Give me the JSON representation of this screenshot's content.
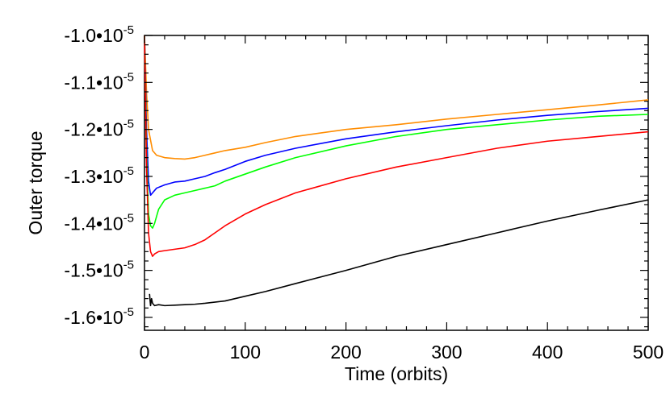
{
  "chart_data": {
    "type": "line",
    "xlabel": "Time (orbits)",
    "ylabel": "Outer torque",
    "xlim": [
      0,
      500
    ],
    "ylim": [
      -1.6275e-05,
      -1e-05
    ],
    "x_ticks": [
      {
        "value": 0,
        "label": "0"
      },
      {
        "value": 100,
        "label": "100"
      },
      {
        "value": 200,
        "label": "200"
      },
      {
        "value": 300,
        "label": "300"
      },
      {
        "value": 400,
        "label": "400"
      },
      {
        "value": 500,
        "label": "500"
      }
    ],
    "y_ticks": [
      {
        "value": -1e-05,
        "mantissa": "-1.0",
        "base": "•10",
        "exp": "-5"
      },
      {
        "value": -1.1e-05,
        "mantissa": "-1.1",
        "base": "•10",
        "exp": "-5"
      },
      {
        "value": -1.2e-05,
        "mantissa": "-1.2",
        "base": "•10",
        "exp": "-5"
      },
      {
        "value": -1.3e-05,
        "mantissa": "-1.3",
        "base": "•10",
        "exp": "-5"
      },
      {
        "value": -1.4e-05,
        "mantissa": "-1.4",
        "base": "•10",
        "exp": "-5"
      },
      {
        "value": -1.5e-05,
        "mantissa": "-1.5",
        "base": "•10",
        "exp": "-5"
      },
      {
        "value": -1.6e-05,
        "mantissa": "-1.6",
        "base": "•10",
        "exp": "-5"
      }
    ],
    "grid": false,
    "legend": "none",
    "series": [
      {
        "color": "#ff8c00",
        "x": [
          0,
          2,
          4,
          8,
          12,
          20,
          30,
          40,
          50,
          60,
          70,
          80,
          100,
          120,
          150,
          200,
          250,
          300,
          350,
          400,
          450,
          500
        ],
        "y": [
          -1e-05,
          -1.12e-05,
          -1.2e-05,
          -1.245e-05,
          -1.255e-05,
          -1.26e-05,
          -1.262e-05,
          -1.263e-05,
          -1.26e-05,
          -1.255e-05,
          -1.25e-05,
          -1.245e-05,
          -1.238e-05,
          -1.228e-05,
          -1.215e-05,
          -1.2e-05,
          -1.19e-05,
          -1.178e-05,
          -1.168e-05,
          -1.158e-05,
          -1.148e-05,
          -1.137e-05
        ]
      },
      {
        "color": "#0000ff",
        "x": [
          0,
          2,
          4,
          6,
          8,
          12,
          20,
          30,
          40,
          50,
          60,
          70,
          80,
          100,
          120,
          150,
          200,
          250,
          300,
          350,
          400,
          450,
          500
        ],
        "y": [
          -1e-05,
          -1.2e-05,
          -1.31e-05,
          -1.34e-05,
          -1.335e-05,
          -1.325e-05,
          -1.318e-05,
          -1.312e-05,
          -1.31e-05,
          -1.305e-05,
          -1.3e-05,
          -1.292e-05,
          -1.285e-05,
          -1.268e-05,
          -1.255e-05,
          -1.24e-05,
          -1.22e-05,
          -1.205e-05,
          -1.192e-05,
          -1.18e-05,
          -1.17e-05,
          -1.162e-05,
          -1.155e-05
        ]
      },
      {
        "color": "#00ff00",
        "x": [
          0,
          2,
          4,
          6,
          8,
          10,
          14,
          20,
          30,
          40,
          50,
          60,
          70,
          80,
          100,
          120,
          150,
          200,
          250,
          300,
          350,
          400,
          450,
          500
        ],
        "y": [
          -1e-05,
          -1.25e-05,
          -1.38e-05,
          -1.405e-05,
          -1.41e-05,
          -1.4e-05,
          -1.37e-05,
          -1.35e-05,
          -1.34e-05,
          -1.335e-05,
          -1.33e-05,
          -1.325e-05,
          -1.32e-05,
          -1.31e-05,
          -1.295e-05,
          -1.28e-05,
          -1.26e-05,
          -1.235e-05,
          -1.215e-05,
          -1.2e-05,
          -1.19e-05,
          -1.18e-05,
          -1.172e-05,
          -1.168e-05
        ]
      },
      {
        "color": "#ff0000",
        "x": [
          0,
          2,
          4,
          6,
          8,
          10,
          14,
          20,
          30,
          40,
          50,
          60,
          70,
          80,
          100,
          120,
          150,
          200,
          250,
          300,
          350,
          400,
          450,
          500
        ],
        "y": [
          -1e-05,
          -1.28e-05,
          -1.42e-05,
          -1.46e-05,
          -1.47e-05,
          -1.465e-05,
          -1.46e-05,
          -1.458e-05,
          -1.455e-05,
          -1.452e-05,
          -1.445e-05,
          -1.435e-05,
          -1.42e-05,
          -1.405e-05,
          -1.38e-05,
          -1.36e-05,
          -1.335e-05,
          -1.305e-05,
          -1.28e-05,
          -1.26e-05,
          -1.24e-05,
          -1.225e-05,
          -1.215e-05,
          -1.205e-05
        ]
      },
      {
        "color": "#000000",
        "x": [
          5,
          6,
          7,
          8,
          10,
          14,
          20,
          30,
          40,
          50,
          60,
          80,
          100,
          120,
          150,
          200,
          250,
          300,
          350,
          400,
          450,
          500
        ],
        "y": [
          -1.55e-05,
          -1.575e-05,
          -1.56e-05,
          -1.57e-05,
          -1.575e-05,
          -1.573e-05,
          -1.575e-05,
          -1.574e-05,
          -1.573e-05,
          -1.572e-05,
          -1.57e-05,
          -1.565e-05,
          -1.555e-05,
          -1.545e-05,
          -1.528e-05,
          -1.5e-05,
          -1.47e-05,
          -1.445e-05,
          -1.42e-05,
          -1.395e-05,
          -1.372e-05,
          -1.35e-05
        ]
      }
    ]
  }
}
